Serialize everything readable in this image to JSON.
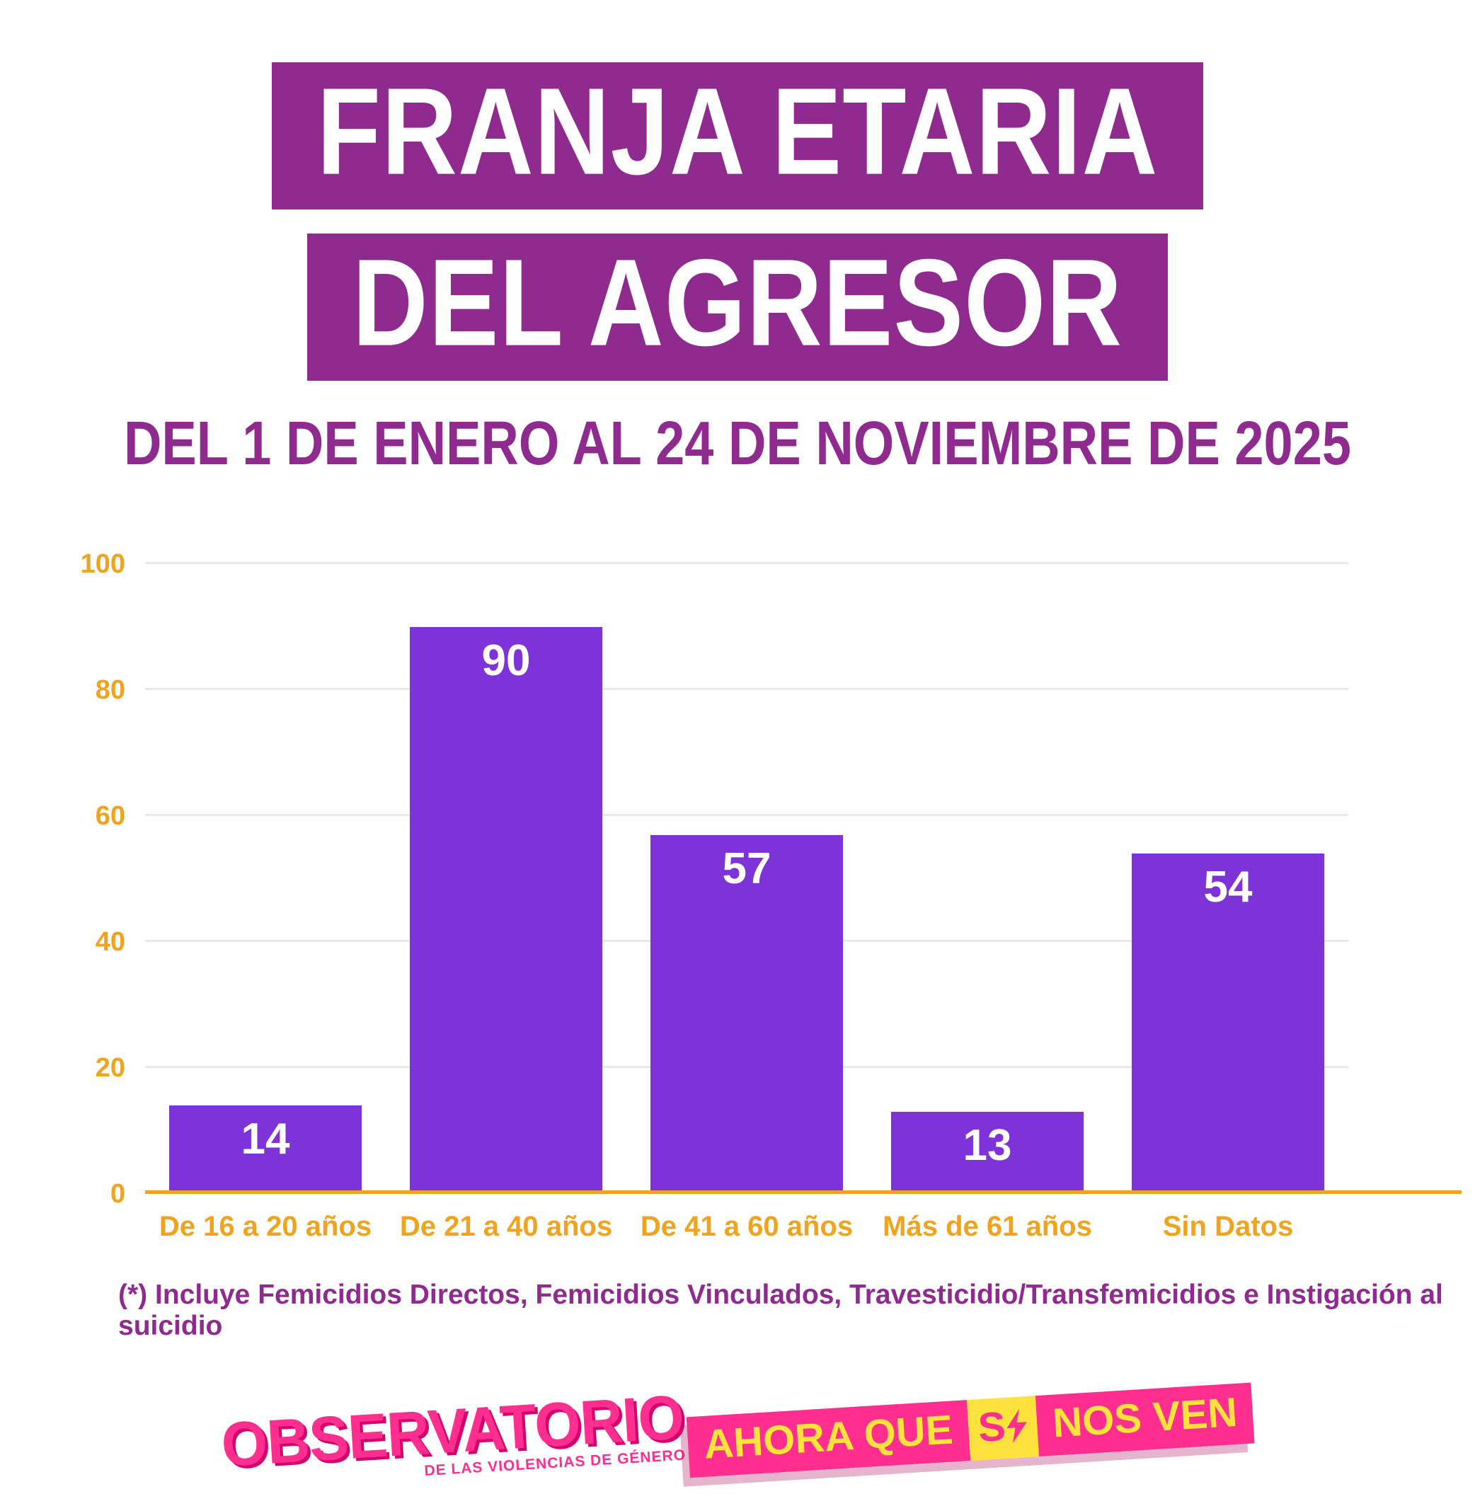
{
  "header": {
    "title_line1": "FRANJA ETARIA",
    "title_line2": "DEL AGRESOR",
    "subtitle": "DEL 1 DE ENERO AL 24 DE NOVIEMBRE DE 2025"
  },
  "chart_data": {
    "type": "bar",
    "title": "Franja etaria del agresor - Del 1 de enero al 24 de noviembre de 2025",
    "categories": [
      "De 16 a 20 años",
      "De 21 a 40 años",
      "De 41 a 60 años",
      "Más de 61 años",
      "Sin Datos"
    ],
    "values": [
      14,
      90,
      57,
      13,
      54
    ],
    "xlabel": "",
    "ylabel": "",
    "ylim": [
      0,
      100
    ],
    "yticks": [
      0,
      20,
      40,
      60,
      80,
      100
    ],
    "grid": true,
    "legend_position": "none",
    "bar_color": "#7e33d8",
    "value_label_color": "#ffffff",
    "tick_label_color": "#f0a31f",
    "axis_line_color": "#f0a31f"
  },
  "footnote": "(*) Incluye Femicidios Directos, Femicidios Vinculados,  Travesticidio/Transfemicidios e Instigación al suicidio",
  "logo": {
    "title": "OBSERVATORIO",
    "subtitle": "DE LAS VIOLENCIAS DE GÉNERO",
    "banner_part1": "AHORA QUE",
    "banner_part2": "S",
    "banner_part3": "NOS VEN"
  },
  "colors": {
    "banner_bg": "#8f2a8f",
    "subtitle_text": "#8f2a8f",
    "footnote_text": "#8f2a8f",
    "gridline": "#e9e9e9",
    "logo_pink": "#ff2e8f",
    "logo_shadow_pink": "#d4006e",
    "logo_yellow": "#ffe23d"
  }
}
